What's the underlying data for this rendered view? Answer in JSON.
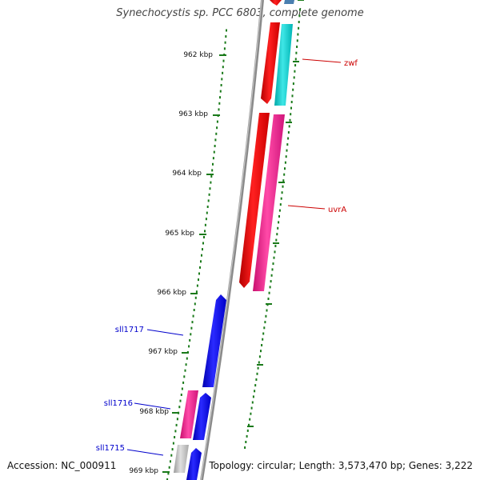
{
  "title": "Synechocystis sp. PCC 6803, complete genome",
  "footer": {
    "accession": "Accession: NC_000911",
    "info": "Topology: circular; Length: 3,573,470 bp; Genes: 3,222"
  },
  "ticks": [
    "962 kbp",
    "963 kbp",
    "964 kbp",
    "965 kbp",
    "966 kbp",
    "967 kbp",
    "968 kbp",
    "969 kbp"
  ],
  "gene_labels": [
    {
      "text": "zwf",
      "color": "#cc0000"
    },
    {
      "text": "uvrA",
      "color": "#cc0000"
    },
    {
      "text": "sll1717",
      "color": "#0000cc"
    },
    {
      "text": "sll1716",
      "color": "#0000cc"
    },
    {
      "text": "sll1715",
      "color": "#0000cc"
    }
  ],
  "colors": {
    "backbone": "#777777",
    "tick": "#1a7a1a",
    "forward": "#ff0000",
    "pink": "#ff1493",
    "cyan": "#00cccc",
    "reverse": "#0000ff",
    "grey": "#b8b8b8",
    "steel": "#4a7fb0"
  }
}
